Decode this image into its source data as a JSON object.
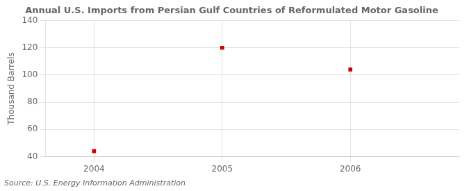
{
  "chart_data": {
    "type": "scatter",
    "title": "Annual U.S. Imports from Persian Gulf Countries of Reformulated Motor Gasoline",
    "ylabel": "Thousand Barrels",
    "source": "Source: U.S. Energy Information Administration",
    "x": [
      2004,
      2005,
      2006
    ],
    "values": [
      44,
      120,
      104
    ],
    "color": "#cc0000",
    "marker": "square",
    "xlim": [
      2003.62,
      2006.85
    ],
    "xticks": [
      2004,
      2005,
      2006
    ],
    "ylim": [
      40,
      140
    ],
    "yticks": [
      40,
      60,
      80,
      100,
      120,
      140
    ],
    "grid": true
  }
}
